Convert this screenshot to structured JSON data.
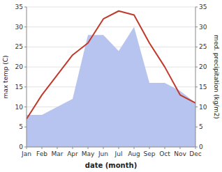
{
  "chart_data": {
    "type": "line",
    "xlabel": "date (month)",
    "ylabel": "max temp (C)",
    "y2label": "med. precipitation (kg/m2)",
    "categories": [
      "Jan",
      "Feb",
      "Mar",
      "Apr",
      "May",
      "Jun",
      "Jul",
      "Aug",
      "Sep",
      "Oct",
      "Nov",
      "Dec"
    ],
    "series": [
      {
        "type": "area",
        "axis": "y2",
        "color": "#b8c4f0",
        "values": [
          8,
          8,
          10,
          12,
          28,
          28,
          24,
          30,
          16,
          16,
          14,
          11
        ]
      },
      {
        "type": "line",
        "color": "#c0392b",
        "values": [
          7,
          13,
          18,
          23,
          26,
          32,
          34,
          33,
          26,
          20,
          13,
          11
        ]
      }
    ],
    "ylim": [
      0,
      35
    ],
    "yticks": [
      0,
      5,
      10,
      15,
      20,
      25,
      30,
      35
    ],
    "y2lim": [
      0,
      35
    ],
    "y2ticks": [
      0,
      5,
      10,
      15,
      20,
      25,
      30,
      35
    ],
    "grid": true
  }
}
